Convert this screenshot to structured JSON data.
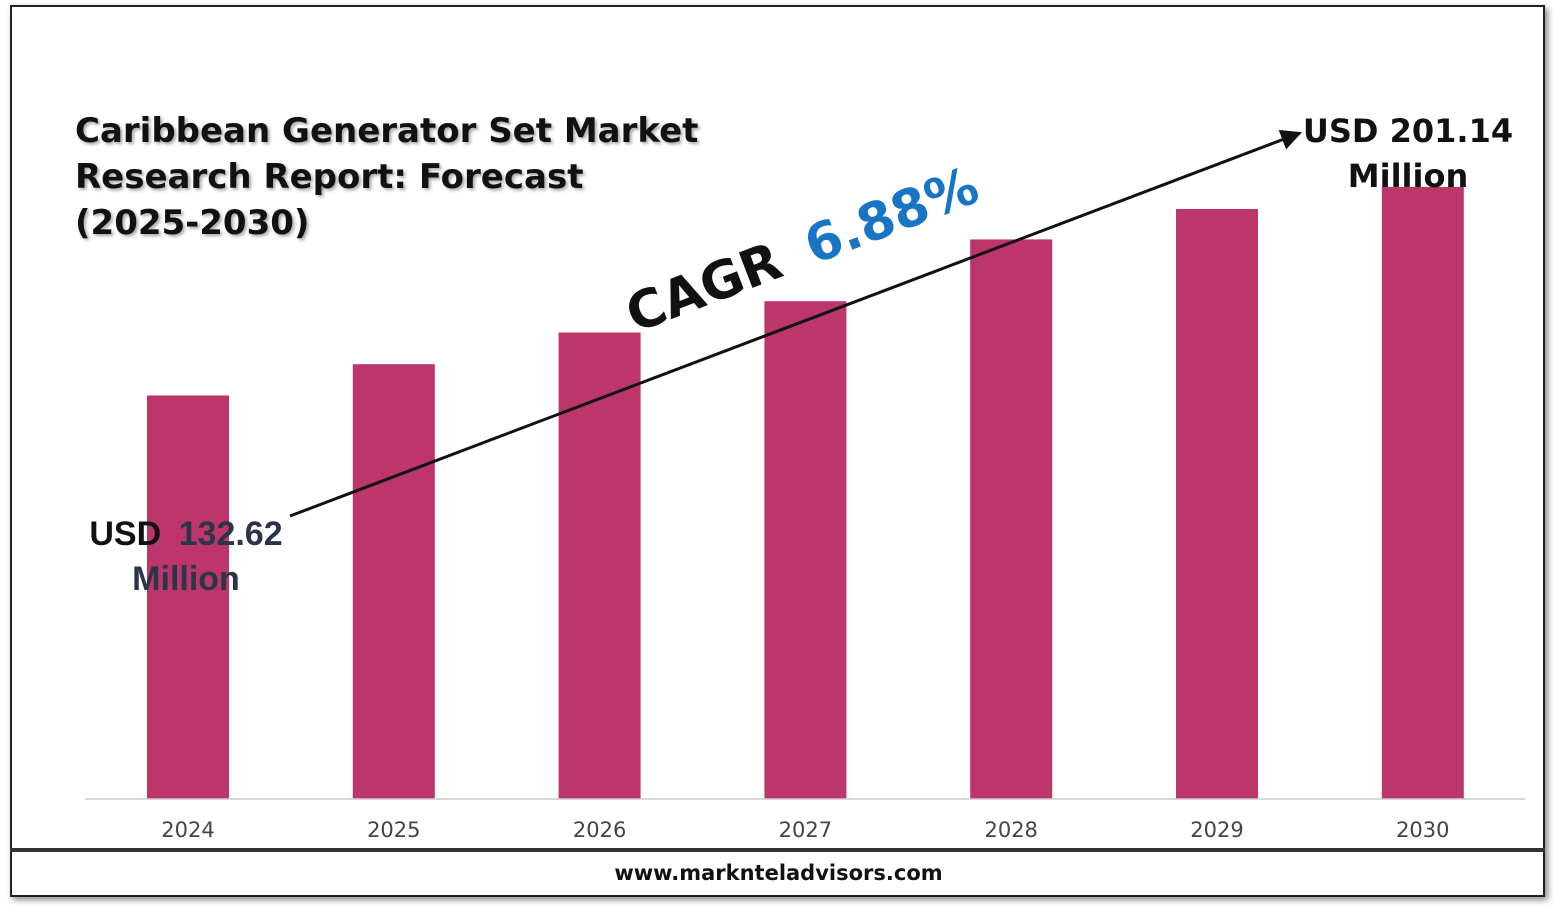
{
  "title_lines": [
    "Caribbean Generator Set Market",
    "Research Report: Forecast",
    "(2025-2030)"
  ],
  "website": "www.marknteladvisors.com",
  "cagr": {
    "prefix": "CAGR",
    "value": "6.88%"
  },
  "start_label": {
    "prefix": "USD",
    "value": "132.62",
    "unit": "Million"
  },
  "end_label": {
    "line1": "USD 201.14",
    "line2": "Million"
  },
  "colors": {
    "bar": "#bc356b",
    "cagr_value": "#1874c4",
    "start_label": "#2b3448",
    "text": "#111111",
    "axis": "#cccccc"
  },
  "chart_data": {
    "type": "bar",
    "title": "Caribbean Generator Set Market Research Report: Forecast (2025-2030)",
    "categories": [
      "2024",
      "2025",
      "2026",
      "2027",
      "2028",
      "2029",
      "2030"
    ],
    "values": [
      132.62,
      142.9,
      153.3,
      163.6,
      183.9,
      193.9,
      201.14
    ],
    "ylim": [
      0,
      210
    ],
    "grid": false,
    "legend": "none"
  }
}
